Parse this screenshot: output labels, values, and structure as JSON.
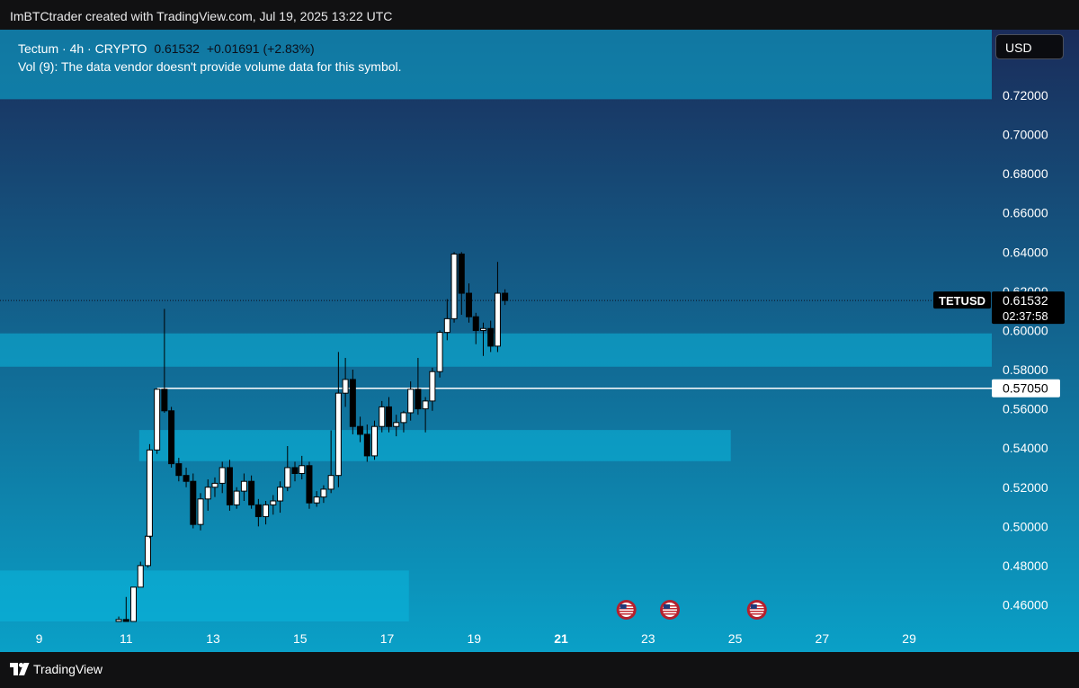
{
  "header": {
    "text": "ImBTCtrader created with TradingView.com, Jul 19, 2025 13:22 UTC"
  },
  "legend": {
    "symbol": "Tectum · 4h · CRYPTO",
    "last": "0.61532",
    "change": "+0.01691 (+2.83%)",
    "volume_note": "Vol (9): The data vendor doesn't provide volume data for this symbol."
  },
  "currency_button": "USD",
  "footer": {
    "brand": "TradingView",
    "logo_icon": "tradingview-logo-icon"
  },
  "colors": {
    "background_top": "#1a2c5a",
    "background_bottom": "#0aa0c7",
    "zone": "#0bb7dc",
    "candle_up": "#ffffff",
    "candle_down": "#000000",
    "level_line": "#ffffff"
  },
  "chart_data": {
    "type": "candlestick",
    "timeframe": "4h",
    "x_ticks": [
      {
        "label": "9",
        "day": 9,
        "bold": false
      },
      {
        "label": "11",
        "day": 11,
        "bold": false
      },
      {
        "label": "13",
        "day": 13,
        "bold": false
      },
      {
        "label": "15",
        "day": 15,
        "bold": false
      },
      {
        "label": "17",
        "day": 17,
        "bold": false
      },
      {
        "label": "19",
        "day": 19,
        "bold": false
      },
      {
        "label": "21",
        "day": 21,
        "bold": true
      },
      {
        "label": "23",
        "day": 23,
        "bold": false
      },
      {
        "label": "25",
        "day": 25,
        "bold": false
      },
      {
        "label": "27",
        "day": 27,
        "bold": false
      },
      {
        "label": "29",
        "day": 29,
        "bold": false
      }
    ],
    "y_ticks": [
      "0.72000",
      "0.70000",
      "0.68000",
      "0.66000",
      "0.64000",
      "0.62000",
      "0.60000",
      "0.58000",
      "0.56000",
      "0.54000",
      "0.52000",
      "0.50000",
      "0.48000",
      "0.46000"
    ],
    "ylim": [
      0.4515,
      0.7535
    ],
    "xlim": [
      8.1,
      30.9
    ],
    "last_price": {
      "symbol": "TETUSD",
      "value": 0.61532,
      "value_label": "0.61532",
      "countdown": "02:37:58"
    },
    "level_line": {
      "value": 0.5705,
      "label": "0.57050",
      "from_day": 11.71
    },
    "zones": [
      {
        "x0": 8.1,
        "x1": 30.9,
        "y0": 0.718,
        "y1": 0.7535
      },
      {
        "x0": 8.1,
        "x1": 30.9,
        "y0": 0.5815,
        "y1": 0.5985
      },
      {
        "x0": 11.3,
        "x1": 24.9,
        "y0": 0.5333,
        "y1": 0.5492
      },
      {
        "x0": 8.1,
        "x1": 17.5,
        "y0": 0.4515,
        "y1": 0.4775
      }
    ],
    "events": [
      {
        "day": 22.5,
        "icon": "us-flag-icon"
      },
      {
        "day": 23.5,
        "icon": "us-flag-icon"
      },
      {
        "day": 25.5,
        "icon": "us-flag-icon"
      }
    ],
    "candles": [
      {
        "t": 10.83,
        "o": 0.4515,
        "h": 0.454,
        "l": 0.4515,
        "c": 0.4525
      },
      {
        "t": 11.0,
        "o": 0.4525,
        "h": 0.464,
        "l": 0.4515,
        "c": 0.4515
      },
      {
        "t": 11.17,
        "o": 0.4515,
        "h": 0.469,
        "l": 0.4515,
        "c": 0.469
      },
      {
        "t": 11.33,
        "o": 0.469,
        "h": 0.482,
        "l": 0.469,
        "c": 0.48
      },
      {
        "t": 11.5,
        "o": 0.48,
        "h": 0.515,
        "l": 0.479,
        "c": 0.495
      },
      {
        "t": 11.54,
        "o": 0.495,
        "h": 0.542,
        "l": 0.494,
        "c": 0.539
      },
      {
        "t": 11.71,
        "o": 0.539,
        "h": 0.5705,
        "l": 0.537,
        "c": 0.57
      },
      {
        "t": 11.88,
        "o": 0.57,
        "h": 0.611,
        "l": 0.558,
        "c": 0.559
      },
      {
        "t": 12.04,
        "o": 0.559,
        "h": 0.561,
        "l": 0.53,
        "c": 0.532
      },
      {
        "t": 12.21,
        "o": 0.532,
        "h": 0.535,
        "l": 0.523,
        "c": 0.526
      },
      {
        "t": 12.38,
        "o": 0.526,
        "h": 0.53,
        "l": 0.52,
        "c": 0.523
      },
      {
        "t": 12.54,
        "o": 0.523,
        "h": 0.527,
        "l": 0.499,
        "c": 0.501
      },
      {
        "t": 12.71,
        "o": 0.501,
        "h": 0.517,
        "l": 0.498,
        "c": 0.514
      },
      {
        "t": 12.88,
        "o": 0.514,
        "h": 0.524,
        "l": 0.508,
        "c": 0.52
      },
      {
        "t": 13.04,
        "o": 0.52,
        "h": 0.525,
        "l": 0.515,
        "c": 0.522
      },
      {
        "t": 13.21,
        "o": 0.522,
        "h": 0.533,
        "l": 0.517,
        "c": 0.53
      },
      {
        "t": 13.38,
        "o": 0.53,
        "h": 0.534,
        "l": 0.508,
        "c": 0.511
      },
      {
        "t": 13.54,
        "o": 0.511,
        "h": 0.52,
        "l": 0.509,
        "c": 0.518
      },
      {
        "t": 13.71,
        "o": 0.518,
        "h": 0.527,
        "l": 0.513,
        "c": 0.523
      },
      {
        "t": 13.88,
        "o": 0.523,
        "h": 0.526,
        "l": 0.509,
        "c": 0.511
      },
      {
        "t": 14.04,
        "o": 0.511,
        "h": 0.514,
        "l": 0.5,
        "c": 0.505
      },
      {
        "t": 14.21,
        "o": 0.505,
        "h": 0.513,
        "l": 0.501,
        "c": 0.511
      },
      {
        "t": 14.38,
        "o": 0.511,
        "h": 0.516,
        "l": 0.506,
        "c": 0.513
      },
      {
        "t": 14.54,
        "o": 0.513,
        "h": 0.523,
        "l": 0.507,
        "c": 0.52
      },
      {
        "t": 14.71,
        "o": 0.52,
        "h": 0.541,
        "l": 0.518,
        "c": 0.53
      },
      {
        "t": 14.88,
        "o": 0.53,
        "h": 0.533,
        "l": 0.523,
        "c": 0.527
      },
      {
        "t": 15.04,
        "o": 0.527,
        "h": 0.536,
        "l": 0.524,
        "c": 0.531
      },
      {
        "t": 15.21,
        "o": 0.531,
        "h": 0.533,
        "l": 0.509,
        "c": 0.512
      },
      {
        "t": 15.38,
        "o": 0.512,
        "h": 0.518,
        "l": 0.51,
        "c": 0.515
      },
      {
        "t": 15.54,
        "o": 0.515,
        "h": 0.521,
        "l": 0.512,
        "c": 0.519
      },
      {
        "t": 15.71,
        "o": 0.519,
        "h": 0.549,
        "l": 0.517,
        "c": 0.526
      },
      {
        "t": 15.88,
        "o": 0.526,
        "h": 0.589,
        "l": 0.52,
        "c": 0.568
      },
      {
        "t": 16.04,
        "o": 0.568,
        "h": 0.586,
        "l": 0.561,
        "c": 0.575
      },
      {
        "t": 16.21,
        "o": 0.575,
        "h": 0.58,
        "l": 0.547,
        "c": 0.551
      },
      {
        "t": 16.38,
        "o": 0.551,
        "h": 0.556,
        "l": 0.543,
        "c": 0.547
      },
      {
        "t": 16.54,
        "o": 0.547,
        "h": 0.552,
        "l": 0.533,
        "c": 0.536
      },
      {
        "t": 16.71,
        "o": 0.536,
        "h": 0.554,
        "l": 0.534,
        "c": 0.551
      },
      {
        "t": 16.88,
        "o": 0.551,
        "h": 0.564,
        "l": 0.548,
        "c": 0.561
      },
      {
        "t": 17.04,
        "o": 0.561,
        "h": 0.566,
        "l": 0.548,
        "c": 0.551
      },
      {
        "t": 17.21,
        "o": 0.551,
        "h": 0.557,
        "l": 0.546,
        "c": 0.553
      },
      {
        "t": 17.38,
        "o": 0.553,
        "h": 0.559,
        "l": 0.548,
        "c": 0.558
      },
      {
        "t": 17.54,
        "o": 0.558,
        "h": 0.574,
        "l": 0.554,
        "c": 0.57
      },
      {
        "t": 17.71,
        "o": 0.57,
        "h": 0.586,
        "l": 0.557,
        "c": 0.56
      },
      {
        "t": 17.88,
        "o": 0.56,
        "h": 0.566,
        "l": 0.548,
        "c": 0.564
      },
      {
        "t": 18.04,
        "o": 0.564,
        "h": 0.581,
        "l": 0.559,
        "c": 0.579
      },
      {
        "t": 18.21,
        "o": 0.579,
        "h": 0.6,
        "l": 0.576,
        "c": 0.599
      },
      {
        "t": 18.38,
        "o": 0.599,
        "h": 0.616,
        "l": 0.595,
        "c": 0.606
      },
      {
        "t": 18.54,
        "o": 0.606,
        "h": 0.64,
        "l": 0.604,
        "c": 0.639
      },
      {
        "t": 18.71,
        "o": 0.639,
        "h": 0.64,
        "l": 0.608,
        "c": 0.619
      },
      {
        "t": 18.88,
        "o": 0.619,
        "h": 0.624,
        "l": 0.604,
        "c": 0.607
      },
      {
        "t": 19.04,
        "o": 0.607,
        "h": 0.609,
        "l": 0.593,
        "c": 0.6
      },
      {
        "t": 19.21,
        "o": 0.6,
        "h": 0.604,
        "l": 0.587,
        "c": 0.601
      },
      {
        "t": 19.38,
        "o": 0.601,
        "h": 0.605,
        "l": 0.589,
        "c": 0.592
      },
      {
        "t": 19.54,
        "o": 0.592,
        "h": 0.635,
        "l": 0.589,
        "c": 0.619
      },
      {
        "t": 19.71,
        "o": 0.619,
        "h": 0.621,
        "l": 0.613,
        "c": 0.6153
      }
    ]
  }
}
